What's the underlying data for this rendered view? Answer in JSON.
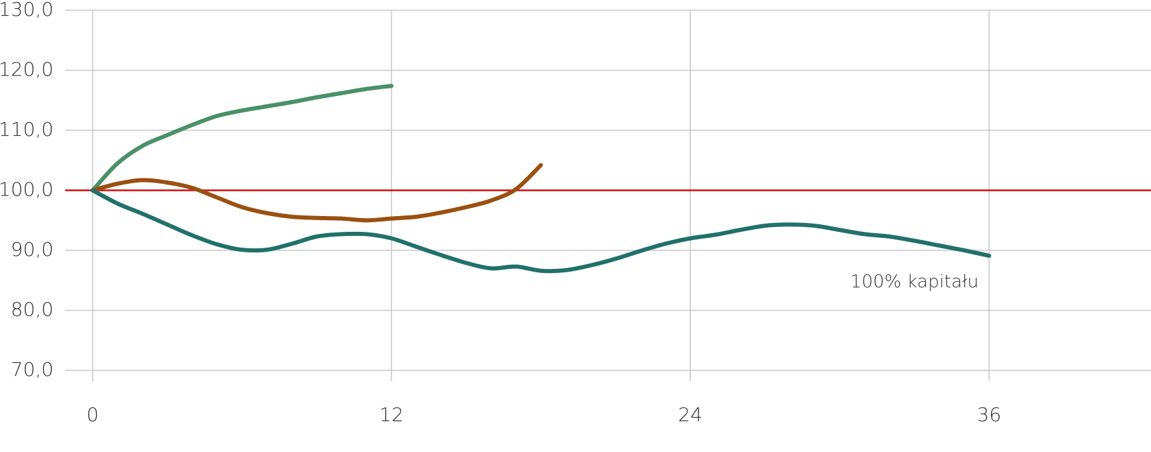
{
  "chart_data": {
    "type": "line",
    "x": [
      0,
      1,
      2,
      3,
      4,
      5,
      6,
      7,
      8,
      9,
      10,
      11,
      12,
      13,
      14,
      15,
      16,
      17,
      18,
      19,
      20,
      21,
      22,
      23,
      24,
      25,
      26,
      27,
      28,
      29,
      30,
      31,
      32,
      33,
      34,
      35,
      36
    ],
    "series": [
      {
        "color": "#4a9068",
        "values": [
          100,
          104.5,
          107.4,
          109.2,
          110.9,
          112.4,
          113.3,
          114.0,
          114.7,
          115.5,
          116.2,
          116.9,
          117.4,
          null,
          null,
          null,
          null,
          null,
          null,
          null,
          null,
          null,
          null,
          null,
          null,
          null,
          null,
          null,
          null,
          null,
          null,
          null,
          null,
          null,
          null,
          null,
          null
        ]
      },
      {
        "color": "#9a5010",
        "values": [
          100,
          101.1,
          101.7,
          101.3,
          100.4,
          98.8,
          97.2,
          96.2,
          95.6,
          95.4,
          95.3,
          95.0,
          95.3,
          95.6,
          96.3,
          97.2,
          98.3,
          100.2,
          104.2,
          null,
          null,
          null,
          null,
          null,
          null,
          null,
          null,
          null,
          null,
          null,
          null,
          null,
          null,
          null,
          null,
          null,
          null
        ]
      },
      {
        "color": "#22706a",
        "values": [
          100,
          97.8,
          96.1,
          94.3,
          92.5,
          91.0,
          90.1,
          90.1,
          91.1,
          92.3,
          92.7,
          92.7,
          92.0,
          90.6,
          89.2,
          87.9,
          87.0,
          87.3,
          86.6,
          86.7,
          87.5,
          88.6,
          89.9,
          91.1,
          92.0,
          92.6,
          93.4,
          94.1,
          94.3,
          94.1,
          93.4,
          92.7,
          92.3,
          91.6,
          90.8,
          90.0,
          89.1
        ]
      }
    ],
    "reference_line": {
      "value": 100,
      "color": "#cc1111"
    },
    "annotation": {
      "text": "100% kapitału",
      "x": 33,
      "y": 84.7
    },
    "xlim": [
      -1.1,
      42.5
    ],
    "xticks": [
      0,
      12,
      24,
      36
    ],
    "ylim": [
      70,
      130
    ],
    "yticks": [
      {
        "value": 70,
        "label": "70,0"
      },
      {
        "value": 80,
        "label": "80,0"
      },
      {
        "value": 90,
        "label": "90,0"
      },
      {
        "value": 100,
        "label": "100,0"
      },
      {
        "value": 110,
        "label": "110,0"
      },
      {
        "value": 120,
        "label": "120,0"
      },
      {
        "value": 130,
        "label": "130,0"
      }
    ],
    "grid": true
  }
}
